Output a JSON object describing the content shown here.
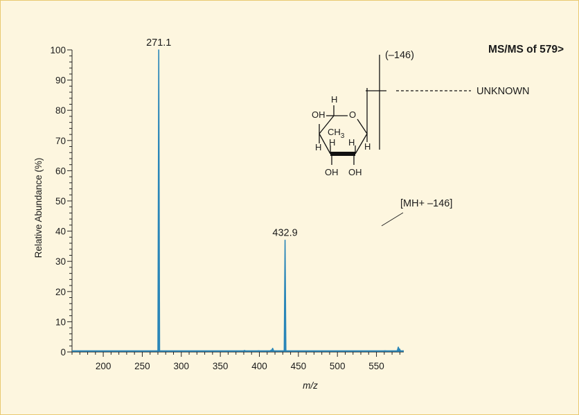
{
  "chart_data": {
    "type": "line",
    "title": "MS/MS of 579>",
    "xlabel": "m/z",
    "ylabel": "Relative Abundance (%)",
    "xlim": [
      160,
      585
    ],
    "ylim": [
      0,
      100
    ],
    "x_ticks": [
      200,
      250,
      300,
      350,
      400,
      450,
      500,
      550
    ],
    "y_ticks": [
      0,
      10,
      20,
      30,
      40,
      50,
      60,
      70,
      80,
      90,
      100
    ],
    "grid": false,
    "peaks": [
      {
        "mz": 271.1,
        "intensity": 100,
        "label": "271.1"
      },
      {
        "mz": 432.9,
        "intensity": 37,
        "label": "432.9"
      },
      {
        "mz": 381.0,
        "intensity": 0.5,
        "label": ""
      },
      {
        "mz": 399.0,
        "intensity": 0.4,
        "label": ""
      },
      {
        "mz": 415.0,
        "intensity": 0.6,
        "label": ""
      },
      {
        "mz": 417.0,
        "intensity": 1.2,
        "label": ""
      },
      {
        "mz": 561.0,
        "intensity": 0.4,
        "label": ""
      },
      {
        "mz": 578.0,
        "intensity": 1.6,
        "label": ""
      },
      {
        "mz": 579.5,
        "intensity": 1.0,
        "label": ""
      }
    ],
    "series_color": "#2a86b8",
    "annotations": {
      "neutral_loss": "(–146)",
      "unknown": "UNKNOWN",
      "fragment": "[MH+ –146]"
    },
    "structure_labels": {
      "h_top": "H",
      "oh_left": "OH",
      "o_ring": "O",
      "ch3": "CH",
      "ch3_sub": "3",
      "h_left": "H",
      "h_mid1": "H",
      "h_mid2": "H",
      "h_right": "H",
      "oh_bottom1": "OH",
      "oh_bottom2": "OH"
    }
  }
}
